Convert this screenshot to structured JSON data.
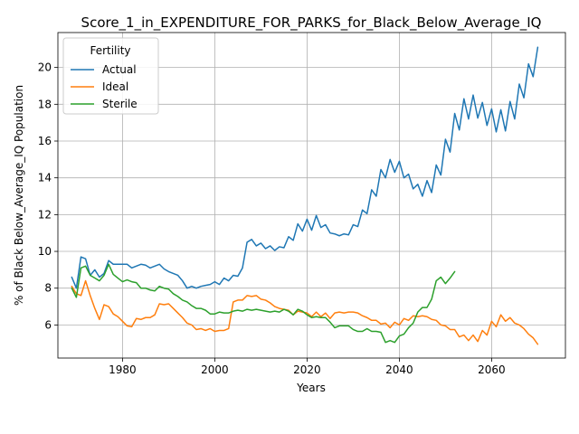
{
  "chart_data": {
    "type": "line",
    "title": "Score_1_in_EXPENDITURE_FOR_PARKS_for_Black_Below_Average_IQ",
    "xlabel": "Years",
    "ylabel": "% of Black Below_Average_IQ Population",
    "xlim": [
      1966,
      2076
    ],
    "ylim": [
      4.2,
      21.9
    ],
    "xticks": [
      1980,
      2000,
      2020,
      2040,
      2060
    ],
    "yticks": [
      6,
      8,
      10,
      12,
      14,
      16,
      18,
      20
    ],
    "grid": true,
    "legend": {
      "title": "Fertility",
      "placement": "top-left"
    },
    "series": [
      {
        "name": "Actual",
        "color": "#1f77b4",
        "x": [
          1969,
          1970,
          1971,
          1972,
          1973,
          1974,
          1975,
          1976,
          1977,
          1978,
          1979,
          1980,
          1981,
          1982,
          1983,
          1984,
          1985,
          1986,
          1987,
          1988,
          1989,
          1990,
          1991,
          1992,
          1993,
          1994,
          1995,
          1996,
          1997,
          1998,
          1999,
          2000,
          2001,
          2002,
          2003,
          2004,
          2005,
          2006,
          2007,
          2008,
          2009,
          2010,
          2011,
          2012,
          2013,
          2014,
          2015,
          2016,
          2017,
          2018,
          2019,
          2020,
          2021,
          2022,
          2023,
          2024,
          2025,
          2026,
          2027,
          2028,
          2029,
          2030,
          2031,
          2032,
          2033,
          2034,
          2035,
          2036,
          2037,
          2038,
          2039,
          2040,
          2041,
          2042,
          2043,
          2044,
          2045,
          2046,
          2047,
          2048,
          2049,
          2050,
          2051,
          2052,
          2053,
          2054,
          2055,
          2056,
          2057,
          2058,
          2059,
          2060,
          2061,
          2062,
          2063,
          2064,
          2065,
          2066,
          2067,
          2068,
          2069,
          2070
        ],
        "y": [
          8.6,
          8.0,
          9.7,
          9.6,
          8.7,
          9.0,
          8.6,
          8.8,
          9.5,
          9.3,
          9.3,
          9.3,
          9.3,
          9.1,
          9.2,
          9.3,
          9.25,
          9.1,
          9.2,
          9.3,
          9.05,
          8.9,
          8.8,
          8.7,
          8.4,
          8.0,
          8.1,
          8.0,
          8.1,
          8.15,
          8.2,
          8.35,
          8.2,
          8.55,
          8.4,
          8.7,
          8.65,
          9.1,
          10.5,
          10.65,
          10.3,
          10.45,
          10.15,
          10.3,
          10.05,
          10.25,
          10.2,
          10.8,
          10.6,
          11.5,
          11.1,
          11.75,
          11.15,
          11.95,
          11.3,
          11.45,
          11.0,
          10.95,
          10.85,
          10.95,
          10.9,
          11.45,
          11.35,
          12.25,
          12.05,
          13.35,
          13.0,
          14.45,
          14.0,
          15.0,
          14.3,
          14.9,
          14.0,
          14.2,
          13.4,
          13.65,
          13.0,
          13.85,
          13.2,
          14.7,
          14.15,
          16.1,
          15.4,
          17.5,
          16.6,
          18.3,
          17.2,
          18.5,
          17.25,
          18.1,
          16.85,
          17.75,
          16.5,
          17.7,
          16.55,
          18.15,
          17.2,
          19.1,
          18.35,
          20.2,
          19.5,
          21.1
        ]
      },
      {
        "name": "Ideal",
        "color": "#ff7f0e",
        "x": [
          1969,
          1970,
          1971,
          1972,
          1973,
          1974,
          1975,
          1976,
          1977,
          1978,
          1979,
          1980,
          1981,
          1982,
          1983,
          1984,
          1985,
          1986,
          1987,
          1988,
          1989,
          1990,
          1991,
          1992,
          1993,
          1994,
          1995,
          1996,
          1997,
          1998,
          1999,
          2000,
          2001,
          2002,
          2003,
          2004,
          2005,
          2006,
          2007,
          2008,
          2009,
          2010,
          2011,
          2012,
          2013,
          2014,
          2015,
          2016,
          2017,
          2018,
          2019,
          2020,
          2021,
          2022,
          2023,
          2024,
          2025,
          2026,
          2027,
          2028,
          2029,
          2030,
          2031,
          2032,
          2033,
          2034,
          2035,
          2036,
          2037,
          2038,
          2039,
          2040,
          2041,
          2042,
          2043,
          2044,
          2045,
          2046,
          2047,
          2048,
          2049,
          2050,
          2051,
          2052,
          2053,
          2054,
          2055,
          2056,
          2057,
          2058,
          2059,
          2060,
          2061,
          2062,
          2063,
          2064,
          2065,
          2066,
          2067,
          2068,
          2069,
          2070
        ],
        "y": [
          8.1,
          7.7,
          7.6,
          8.4,
          7.6,
          6.9,
          6.3,
          7.1,
          7.0,
          6.6,
          6.45,
          6.2,
          5.95,
          5.9,
          6.35,
          6.3,
          6.4,
          6.4,
          6.55,
          7.15,
          7.1,
          7.15,
          6.9,
          6.65,
          6.4,
          6.1,
          6.0,
          5.75,
          5.8,
          5.7,
          5.8,
          5.65,
          5.7,
          5.7,
          5.8,
          7.25,
          7.35,
          7.35,
          7.6,
          7.55,
          7.6,
          7.4,
          7.35,
          7.2,
          7.0,
          6.9,
          6.85,
          6.8,
          6.55,
          6.75,
          6.7,
          6.65,
          6.45,
          6.7,
          6.45,
          6.65,
          6.35,
          6.65,
          6.7,
          6.65,
          6.7,
          6.7,
          6.65,
          6.5,
          6.4,
          6.25,
          6.25,
          6.05,
          6.1,
          5.85,
          6.15,
          6.0,
          6.35,
          6.25,
          6.5,
          6.45,
          6.5,
          6.45,
          6.3,
          6.25,
          6.0,
          5.95,
          5.75,
          5.75,
          5.35,
          5.45,
          5.15,
          5.45,
          5.1,
          5.7,
          5.45,
          6.2,
          5.9,
          6.55,
          6.2,
          6.4,
          6.1,
          6.0,
          5.8,
          5.5,
          5.3,
          4.95
        ]
      },
      {
        "name": "Sterile",
        "color": "#2ca02c",
        "x": [
          1969,
          1970,
          1971,
          1972,
          1973,
          1974,
          1975,
          1976,
          1977,
          1978,
          1979,
          1980,
          1981,
          1982,
          1983,
          1984,
          1985,
          1986,
          1987,
          1988,
          1989,
          1990,
          1991,
          1992,
          1993,
          1994,
          1995,
          1996,
          1997,
          1998,
          1999,
          2000,
          2001,
          2002,
          2003,
          2004,
          2005,
          2006,
          2007,
          2008,
          2009,
          2010,
          2011,
          2012,
          2013,
          2014,
          2015,
          2016,
          2017,
          2018,
          2019,
          2020,
          2021,
          2022,
          2023,
          2024,
          2025,
          2026,
          2027,
          2028,
          2029,
          2030,
          2031,
          2032,
          2033,
          2034,
          2035,
          2036,
          2037,
          2038,
          2039,
          2040,
          2041,
          2042,
          2043,
          2044,
          2045,
          2046,
          2047,
          2048,
          2049,
          2050,
          2051,
          2052
        ],
        "y": [
          8.0,
          7.5,
          9.1,
          9.2,
          8.7,
          8.55,
          8.4,
          8.7,
          9.3,
          8.75,
          8.55,
          8.35,
          8.45,
          8.35,
          8.3,
          8.0,
          8.0,
          7.9,
          7.85,
          8.1,
          8.0,
          7.95,
          7.7,
          7.55,
          7.35,
          7.25,
          7.05,
          6.9,
          6.9,
          6.8,
          6.6,
          6.6,
          6.7,
          6.65,
          6.65,
          6.75,
          6.8,
          6.75,
          6.85,
          6.8,
          6.85,
          6.8,
          6.75,
          6.7,
          6.75,
          6.7,
          6.85,
          6.75,
          6.55,
          6.85,
          6.75,
          6.55,
          6.4,
          6.45,
          6.4,
          6.4,
          6.15,
          5.85,
          5.95,
          5.95,
          5.95,
          5.75,
          5.65,
          5.65,
          5.8,
          5.65,
          5.65,
          5.6,
          5.05,
          5.15,
          5.05,
          5.4,
          5.5,
          5.85,
          6.1,
          6.7,
          6.95,
          6.95,
          7.4,
          8.4,
          8.6,
          8.25,
          8.55,
          8.9
        ]
      }
    ]
  }
}
